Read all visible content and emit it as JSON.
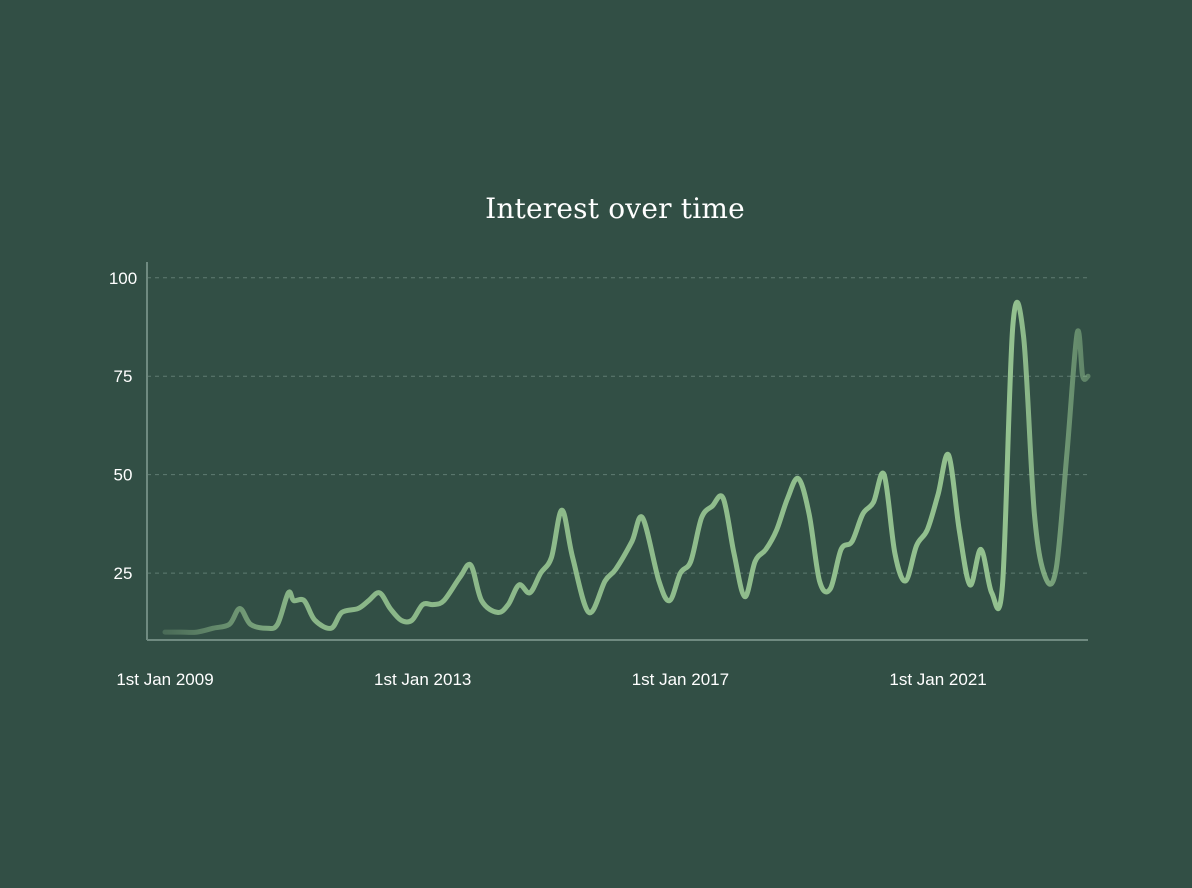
{
  "chart_data": {
    "type": "line",
    "title": "Interest over time",
    "xlabel": "",
    "ylabel": "",
    "x_range": [
      "2009-01-01",
      "2023-05-01"
    ],
    "ylim": [
      8,
      104
    ],
    "y_ticks": [
      25,
      50,
      75,
      100
    ],
    "x_ticks": [
      {
        "date": "2009-01-01",
        "label": "1st Jan 2009"
      },
      {
        "date": "2013-01-01",
        "label": "1st Jan 2013"
      },
      {
        "date": "2017-01-01",
        "label": "1st Jan 2017"
      },
      {
        "date": "2021-01-01",
        "label": "1st Jan 2021"
      }
    ],
    "grid": "horizontal dashed",
    "legend": "none",
    "line_color": "#93c18f",
    "series": [
      {
        "points": [
          [
            "2009-01-01",
            10
          ],
          [
            "2009-04-01",
            10
          ],
          [
            "2009-07-01",
            10
          ],
          [
            "2009-10-01",
            11
          ],
          [
            "2010-01-01",
            12
          ],
          [
            "2010-03-01",
            16
          ],
          [
            "2010-05-01",
            12
          ],
          [
            "2010-08-01",
            11
          ],
          [
            "2010-10-01",
            12
          ],
          [
            "2010-12-01",
            20
          ],
          [
            "2011-01-01",
            18
          ],
          [
            "2011-03-01",
            18
          ],
          [
            "2011-05-01",
            13
          ],
          [
            "2011-08-01",
            11
          ],
          [
            "2011-10-01",
            15
          ],
          [
            "2012-01-01",
            16
          ],
          [
            "2012-03-01",
            18
          ],
          [
            "2012-05-01",
            20
          ],
          [
            "2012-07-01",
            16
          ],
          [
            "2012-09-01",
            13
          ],
          [
            "2012-11-01",
            13
          ],
          [
            "2013-01-01",
            17
          ],
          [
            "2013-03-01",
            17
          ],
          [
            "2013-05-01",
            18
          ],
          [
            "2013-08-01",
            24
          ],
          [
            "2013-10-01",
            27
          ],
          [
            "2013-12-01",
            18
          ],
          [
            "2014-03-01",
            15
          ],
          [
            "2014-05-01",
            17
          ],
          [
            "2014-07-01",
            22
          ],
          [
            "2014-09-01",
            20
          ],
          [
            "2014-11-01",
            25
          ],
          [
            "2015-01-01",
            29
          ],
          [
            "2015-03-01",
            41
          ],
          [
            "2015-05-01",
            29
          ],
          [
            "2015-08-01",
            15
          ],
          [
            "2015-11-01",
            23
          ],
          [
            "2016-01-01",
            26
          ],
          [
            "2016-04-01",
            33
          ],
          [
            "2016-06-01",
            39
          ],
          [
            "2016-09-01",
            23
          ],
          [
            "2016-11-01",
            18
          ],
          [
            "2017-01-01",
            25
          ],
          [
            "2017-03-01",
            28
          ],
          [
            "2017-05-01",
            39
          ],
          [
            "2017-07-01",
            42
          ],
          [
            "2017-09-01",
            44
          ],
          [
            "2017-11-01",
            30
          ],
          [
            "2018-01-01",
            19
          ],
          [
            "2018-03-01",
            28
          ],
          [
            "2018-05-01",
            31
          ],
          [
            "2018-07-01",
            36
          ],
          [
            "2018-09-01",
            44
          ],
          [
            "2018-11-01",
            49
          ],
          [
            "2019-01-01",
            40
          ],
          [
            "2019-03-01",
            23
          ],
          [
            "2019-05-01",
            21
          ],
          [
            "2019-07-01",
            31
          ],
          [
            "2019-09-01",
            33
          ],
          [
            "2019-11-01",
            40
          ],
          [
            "2020-01-01",
            43
          ],
          [
            "2020-03-01",
            50
          ],
          [
            "2020-05-01",
            30
          ],
          [
            "2020-07-01",
            23
          ],
          [
            "2020-09-01",
            32
          ],
          [
            "2020-11-01",
            36
          ],
          [
            "2021-01-01",
            45
          ],
          [
            "2021-03-01",
            55
          ],
          [
            "2021-05-01",
            36
          ],
          [
            "2021-07-01",
            22
          ],
          [
            "2021-09-01",
            31
          ],
          [
            "2021-11-01",
            20
          ],
          [
            "2022-01-01",
            22
          ],
          [
            "2022-03-01",
            88
          ],
          [
            "2022-05-01",
            85
          ],
          [
            "2022-07-01",
            40
          ],
          [
            "2022-09-01",
            24
          ],
          [
            "2022-11-01",
            26
          ],
          [
            "2023-01-01",
            55
          ],
          [
            "2023-03-01",
            86
          ],
          [
            "2023-04-01",
            75
          ],
          [
            "2023-05-01",
            75
          ]
        ]
      }
    ]
  }
}
